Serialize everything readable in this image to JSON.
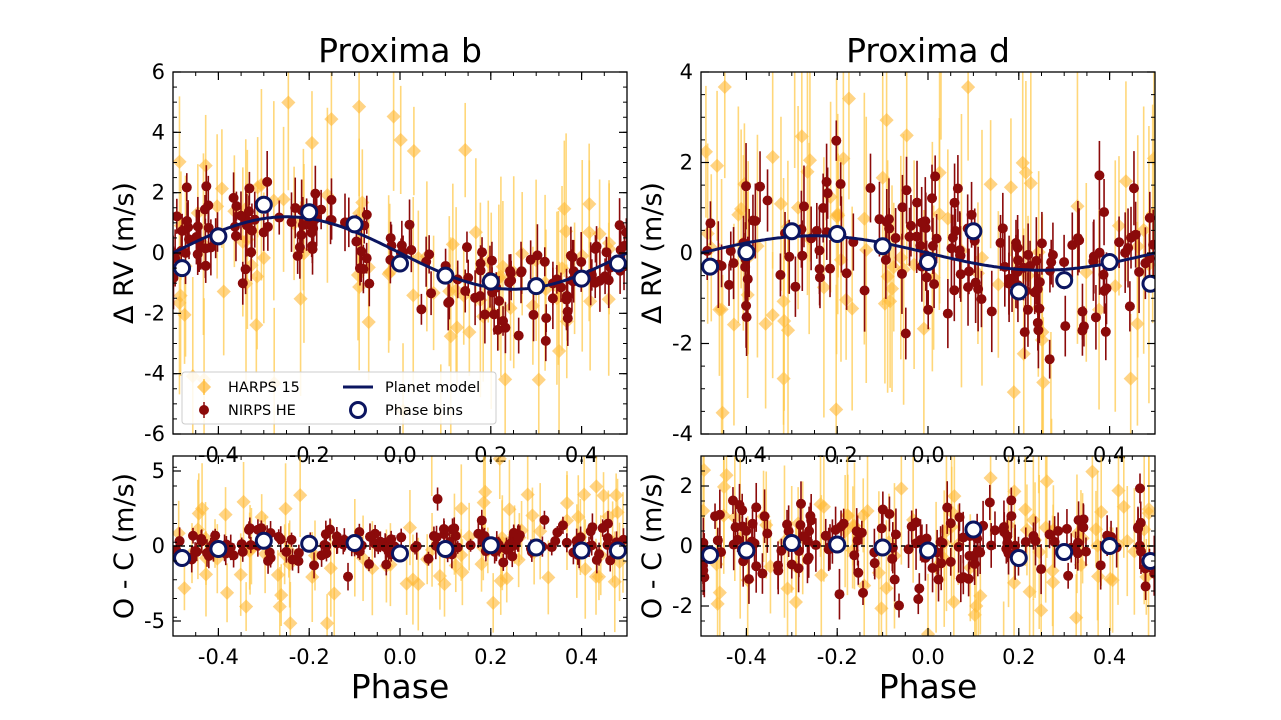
{
  "colors": {
    "harps": "#FFB733",
    "harps_err": "#FFC94D",
    "nirps": "#8B0A0A",
    "model": "#0B1560",
    "bin_edge": "#0B1560",
    "bin_fill": "#ffffff"
  },
  "xlabel": "Phase",
  "legend": {
    "harps": "HARPS 15",
    "nirps": "NIRPS HE",
    "model": "Planet model",
    "bins": "Phase bins"
  },
  "chart_data": [
    {
      "type": "scatter",
      "title": "Proxima b",
      "ylabel": "Δ RV (m/s)",
      "xlim": [
        -0.5,
        0.5
      ],
      "ylim": [
        -6,
        6
      ],
      "yticks": [
        "6",
        "4",
        "2",
        "0",
        "-2",
        "-4",
        "-6"
      ],
      "xticks": [
        "-0.4",
        "-0.2",
        "0.0",
        "0.2",
        "0.4"
      ],
      "legend_position": "lower-left",
      "model": {
        "amplitude": 1.2,
        "peak_phase": -0.25
      },
      "phase_bins": {
        "x": [
          -0.48,
          -0.4,
          -0.3,
          -0.2,
          -0.1,
          0.0,
          0.1,
          0.2,
          0.3,
          0.4,
          0.48
        ],
        "y": [
          -0.5,
          0.55,
          1.6,
          1.35,
          0.95,
          -0.35,
          -0.75,
          -0.95,
          -1.1,
          -0.85,
          -0.35
        ]
      },
      "harps": {
        "scatter": 2.1,
        "err": 2.4,
        "count": 95
      },
      "nirps": {
        "scatter": 0.75,
        "err": 0.75,
        "count": 150
      }
    },
    {
      "type": "scatter",
      "title": "Proxima d",
      "ylabel": "Δ RV (m/s)",
      "xlim": [
        -0.5,
        0.5
      ],
      "ylim": [
        -4,
        4
      ],
      "yticks": [
        "4",
        "2",
        "0",
        "-2",
        "-4"
      ],
      "xticks": [
        "-0.4",
        "-0.2",
        "0.0",
        "0.2",
        "0.4"
      ],
      "model": {
        "amplitude": 0.38,
        "peak_phase": -0.25
      },
      "phase_bins": {
        "x": [
          -0.48,
          -0.4,
          -0.3,
          -0.2,
          -0.1,
          0.0,
          0.1,
          0.2,
          0.3,
          0.4,
          0.49
        ],
        "y": [
          -0.3,
          0.02,
          0.48,
          0.42,
          0.15,
          -0.2,
          0.48,
          -0.85,
          -0.6,
          -0.2,
          -0.68
        ]
      },
      "harps": {
        "scatter": 1.9,
        "err": 2.2,
        "count": 95
      },
      "nirps": {
        "scatter": 0.75,
        "err": 0.7,
        "count": 150
      }
    },
    {
      "type": "scatter",
      "title": "",
      "ylabel": "O - C (m/s)",
      "xlim": [
        -0.5,
        0.5
      ],
      "ylim": [
        -6,
        6
      ],
      "yticks": [
        "5",
        "0",
        "-5"
      ],
      "xticks": [
        "-0.4",
        "-0.2",
        "0.0",
        "0.2",
        "0.4"
      ],
      "phase_bins": {
        "x": [
          -0.48,
          -0.4,
          -0.3,
          -0.2,
          -0.1,
          0.0,
          0.1,
          0.2,
          0.3,
          0.4,
          0.48
        ],
        "y": [
          -0.8,
          -0.2,
          0.35,
          0.15,
          0.2,
          -0.5,
          -0.2,
          0.05,
          -0.1,
          -0.3,
          -0.3
        ]
      },
      "harps": {
        "scatter": 2.2,
        "err": 2.4,
        "count": 95
      },
      "nirps": {
        "scatter": 0.7,
        "err": 0.7,
        "count": 150
      }
    },
    {
      "type": "scatter",
      "title": "",
      "ylabel": "O - C (m/s)",
      "xlim": [
        -0.5,
        0.5
      ],
      "ylim": [
        -3,
        3
      ],
      "yticks": [
        "2",
        "0",
        "-2"
      ],
      "xticks": [
        "-0.4",
        "-0.2",
        "0.0",
        "0.2",
        "0.4"
      ],
      "phase_bins": {
        "x": [
          -0.48,
          -0.4,
          -0.3,
          -0.2,
          -0.1,
          0.0,
          0.1,
          0.2,
          0.3,
          0.4,
          0.49
        ],
        "y": [
          -0.3,
          -0.15,
          0.1,
          0.05,
          -0.05,
          -0.15,
          0.55,
          -0.4,
          -0.2,
          0.0,
          -0.5
        ]
      },
      "harps": {
        "scatter": 1.8,
        "err": 2.0,
        "count": 95
      },
      "nirps": {
        "scatter": 0.7,
        "err": 0.65,
        "count": 150
      }
    }
  ]
}
